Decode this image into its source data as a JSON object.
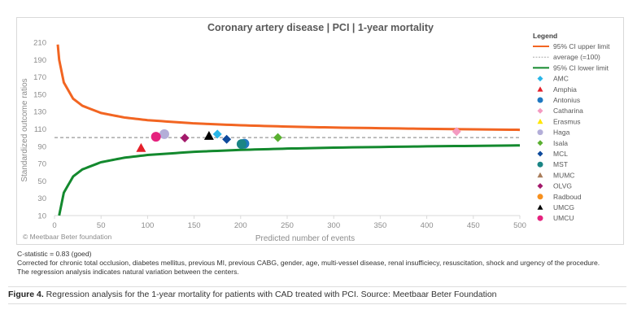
{
  "chart_data": {
    "type": "scatter",
    "title": "Coronary artery disease | PCI | 1-year mortality",
    "xlabel": "Predicted number of events",
    "ylabel": "Standardized outcome ratios",
    "xlim": [
      0,
      500
    ],
    "ylim": [
      10,
      210
    ],
    "xticks": [
      "0",
      "50",
      "100",
      "150",
      "200",
      "250",
      "300",
      "350",
      "400",
      "450",
      "500"
    ],
    "yticks": [
      "10",
      "30",
      "50",
      "70",
      "90",
      "110",
      "130",
      "150",
      "170",
      "190",
      "210"
    ],
    "grid": false,
    "legend_title": "Legend",
    "legend_position": "right",
    "watermark": "© Meetbaar Beter foundation",
    "lines": [
      {
        "name": "95% CI upper limit",
        "color": "#f26522",
        "style": "solid",
        "x": [
          3.5,
          5,
          10,
          20,
          30,
          50,
          75,
          100,
          150,
          200,
          250,
          300,
          400,
          500
        ],
        "y": [
          207.4,
          189.9,
          163.6,
          144.9,
          136.7,
          128.4,
          123.2,
          120.1,
          116.4,
          114.2,
          112.7,
          111.6,
          110.1,
          109.0
        ]
      },
      {
        "name": "average (=100)",
        "color": "#999999",
        "style": "dashed",
        "x": [
          0,
          500
        ],
        "y": [
          100,
          100
        ]
      },
      {
        "name": "95% CI lower limit",
        "color": "#13892e",
        "style": "solid",
        "x": [
          5,
          10,
          20,
          30,
          50,
          75,
          100,
          150,
          200,
          250,
          300,
          400,
          500
        ],
        "y": [
          10.1,
          36.4,
          55.1,
          63.3,
          71.6,
          76.8,
          79.9,
          83.6,
          85.8,
          87.3,
          88.4,
          89.9,
          91.0
        ]
      }
    ],
    "series": [
      {
        "name": "AMC",
        "marker": "diamond",
        "color": "#29b6e8",
        "x": [
          175
        ],
        "y": [
          104
        ]
      },
      {
        "name": "Amphia",
        "marker": "triangle",
        "color": "#e4202a",
        "x": [
          93
        ],
        "y": [
          88
        ]
      },
      {
        "name": "Antonius",
        "marker": "circle",
        "color": "#1f78c1",
        "x": [
          204
        ],
        "y": [
          93
        ]
      },
      {
        "name": "Catharina",
        "marker": "diamond",
        "color": "#f49ac1",
        "x": [
          432
        ],
        "y": [
          107
        ]
      },
      {
        "name": "Erasmus",
        "marker": "triangle",
        "color": "#ffe600",
        "x": [],
        "y": []
      },
      {
        "name": "Haga",
        "marker": "circle",
        "color": "#b3aed8",
        "x": [
          118
        ],
        "y": [
          104
        ]
      },
      {
        "name": "Isala",
        "marker": "diamond",
        "color": "#5ab031",
        "x": [
          240
        ],
        "y": [
          100
        ]
      },
      {
        "name": "MCL",
        "marker": "diamond",
        "color": "#0e4a9c",
        "x": [
          185
        ],
        "y": [
          98
        ]
      },
      {
        "name": "MST",
        "marker": "circle",
        "color": "#1a8585",
        "x": [
          201
        ],
        "y": [
          92.5
        ]
      },
      {
        "name": "MUMC",
        "marker": "triangle",
        "color": "#a97c5a",
        "x": [],
        "y": []
      },
      {
        "name": "OLVG",
        "marker": "diamond",
        "color": "#a3196b",
        "x": [
          140
        ],
        "y": [
          99.5
        ]
      },
      {
        "name": "Radboud",
        "marker": "circle",
        "color": "#f7901e",
        "x": [],
        "y": []
      },
      {
        "name": "UMCG",
        "marker": "triangle",
        "color": "#000000",
        "x": [
          166
        ],
        "y": [
          102
        ]
      },
      {
        "name": "UMCU",
        "marker": "circle",
        "color": "#e5227e",
        "x": [
          109
        ],
        "y": [
          101
        ]
      }
    ]
  },
  "notes": {
    "cstat": "C-statistic = 0.83 (goed)",
    "corrected": "Corrected for chronic total occlusion, diabetes mellitus, previous MI, previous CABG, gender, age, multi-vessel disease, renal insufficiecy, resuscitation, shock and urgency of the procedure.",
    "regression": "The regression analysis indicates natural variation between the centers."
  },
  "caption": {
    "label": "Figure 4.",
    "text": " Regression analysis for the 1-year mortality for patients with CAD treated with PCI. Source: Meetbaar Beter Foundation"
  }
}
